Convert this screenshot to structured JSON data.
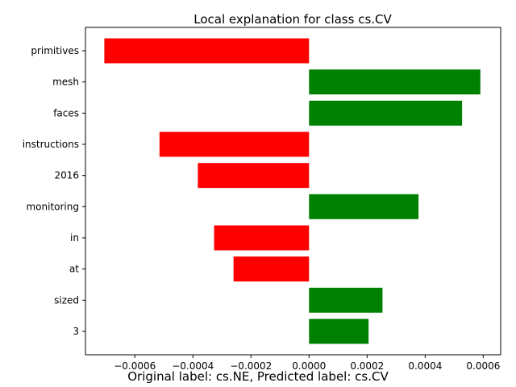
{
  "chart_data": {
    "type": "bar",
    "orientation": "horizontal",
    "title": "Local explanation for class cs.CV",
    "caption": "Original label: cs.NE, Predicted label: cs.CV",
    "categories": [
      "primitives",
      "mesh",
      "faces",
      "instructions",
      "2016",
      "monitoring",
      "in",
      "at",
      "sized",
      "3"
    ],
    "values": [
      -0.000705,
      0.00059,
      0.000527,
      -0.000515,
      -0.000383,
      0.000377,
      -0.000327,
      -0.00026,
      0.000253,
      0.000205
    ],
    "xlim": [
      -0.00077,
      0.00066
    ],
    "xticks": [
      -0.0006,
      -0.0004,
      -0.0002,
      0.0,
      0.0002,
      0.0004,
      0.0006
    ],
    "xtick_labels": [
      "−0.0006",
      "−0.0004",
      "−0.0002",
      "0.0000",
      "0.0002",
      "0.0004",
      "0.0006"
    ],
    "colors": {
      "positive": "#008000",
      "negative": "#ff0000"
    },
    "grid": false,
    "legend": "none"
  }
}
